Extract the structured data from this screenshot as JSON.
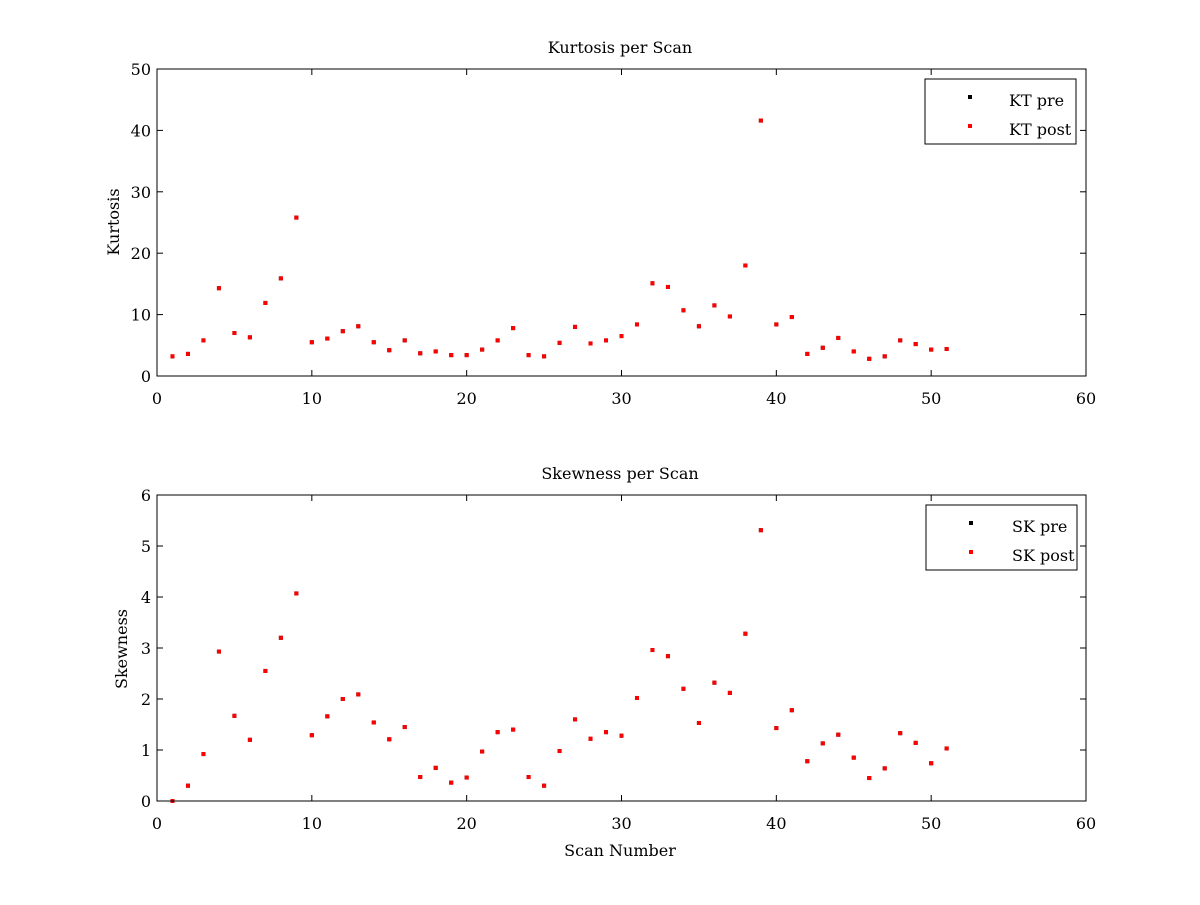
{
  "chart_data": [
    {
      "type": "scatter",
      "title": "Kurtosis per Scan",
      "xlabel": "",
      "ylabel": "Kurtosis",
      "xlim": [
        0,
        60
      ],
      "ylim": [
        0,
        50
      ],
      "xticks": [
        0,
        10,
        20,
        30,
        40,
        50,
        60
      ],
      "yticks": [
        0,
        10,
        20,
        30,
        40,
        50
      ],
      "legend_position": "top-right",
      "series": [
        {
          "name": "KT pre",
          "color": "#000000",
          "x": [
            1,
            2,
            3,
            4,
            5,
            6,
            7,
            8,
            9,
            10,
            11,
            12,
            13,
            14,
            15,
            16,
            17,
            18,
            19,
            20,
            21,
            22,
            23,
            24,
            25,
            26,
            27,
            28,
            29,
            30,
            31,
            32,
            33,
            34,
            35,
            36,
            37,
            38,
            39,
            40,
            41,
            42,
            43,
            44,
            45,
            46,
            47,
            48,
            49,
            50,
            51
          ],
          "y": [
            3.2,
            3.6,
            5.8,
            14.3,
            7.0,
            6.3,
            11.9,
            15.9,
            25.8,
            5.5,
            6.1,
            7.3,
            8.1,
            5.5,
            4.2,
            5.8,
            3.7,
            4.0,
            3.4,
            3.4,
            4.3,
            5.8,
            7.8,
            3.4,
            3.2,
            5.4,
            8.0,
            5.3,
            5.8,
            6.5,
            8.4,
            15.1,
            14.5,
            10.7,
            8.1,
            11.5,
            9.7,
            18.0,
            41.6,
            8.4,
            9.6,
            3.6,
            4.6,
            6.2,
            4.0,
            2.8,
            3.2,
            5.8,
            5.2,
            4.3,
            4.4
          ]
        },
        {
          "name": "KT post",
          "color": "#ff0000",
          "x": [
            1,
            2,
            3,
            4,
            5,
            6,
            7,
            8,
            9,
            10,
            11,
            12,
            13,
            14,
            15,
            16,
            17,
            18,
            19,
            20,
            21,
            22,
            23,
            24,
            25,
            26,
            27,
            28,
            29,
            30,
            31,
            32,
            33,
            34,
            35,
            36,
            37,
            38,
            39,
            40,
            41,
            42,
            43,
            44,
            45,
            46,
            47,
            48,
            49,
            50,
            51
          ],
          "y": [
            3.2,
            3.6,
            5.8,
            14.3,
            7.0,
            6.3,
            11.9,
            15.9,
            25.8,
            5.5,
            6.1,
            7.3,
            8.1,
            5.5,
            4.2,
            5.8,
            3.7,
            4.0,
            3.4,
            3.4,
            4.3,
            5.8,
            7.8,
            3.4,
            3.2,
            5.4,
            8.0,
            5.3,
            5.8,
            6.5,
            8.4,
            15.1,
            14.5,
            10.7,
            8.1,
            11.5,
            9.7,
            18.0,
            41.6,
            8.4,
            9.6,
            3.6,
            4.6,
            6.2,
            4.0,
            2.8,
            3.2,
            5.8,
            5.2,
            4.3,
            4.4
          ]
        }
      ]
    },
    {
      "type": "scatter",
      "title": "Skewness per Scan",
      "xlabel": "Scan Number",
      "ylabel": "Skewness",
      "xlim": [
        0,
        60
      ],
      "ylim": [
        0,
        6
      ],
      "xticks": [
        0,
        10,
        20,
        30,
        40,
        50,
        60
      ],
      "yticks": [
        0,
        1,
        2,
        3,
        4,
        5,
        6
      ],
      "legend_position": "top-right",
      "series": [
        {
          "name": "SK pre",
          "color": "#000000",
          "x": [
            1,
            2,
            3,
            4,
            5,
            6,
            7,
            8,
            9,
            10,
            11,
            12,
            13,
            14,
            15,
            16,
            17,
            18,
            19,
            20,
            21,
            22,
            23,
            24,
            25,
            26,
            27,
            28,
            29,
            30,
            31,
            32,
            33,
            34,
            35,
            36,
            37,
            38,
            39,
            40,
            41,
            42,
            43,
            44,
            45,
            46,
            47,
            48,
            49,
            50,
            51
          ],
          "y": [
            0.0,
            0.3,
            0.92,
            2.93,
            1.67,
            1.2,
            2.55,
            3.2,
            4.07,
            1.29,
            1.66,
            2.0,
            2.09,
            1.54,
            1.21,
            1.45,
            0.47,
            0.65,
            0.36,
            0.46,
            0.97,
            1.35,
            1.4,
            0.47,
            0.3,
            0.98,
            1.6,
            1.22,
            1.35,
            1.28,
            2.02,
            2.96,
            2.84,
            2.2,
            1.53,
            2.32,
            2.12,
            3.28,
            5.31,
            1.43,
            1.78,
            0.78,
            1.13,
            1.3,
            0.85,
            0.45,
            0.64,
            1.33,
            1.14,
            0.74,
            1.03
          ]
        },
        {
          "name": "SK post",
          "color": "#ff0000",
          "x": [
            1,
            2,
            3,
            4,
            5,
            6,
            7,
            8,
            9,
            10,
            11,
            12,
            13,
            14,
            15,
            16,
            17,
            18,
            19,
            20,
            21,
            22,
            23,
            24,
            25,
            26,
            27,
            28,
            29,
            30,
            31,
            32,
            33,
            34,
            35,
            36,
            37,
            38,
            39,
            40,
            41,
            42,
            43,
            44,
            45,
            46,
            47,
            48,
            49,
            50,
            51
          ],
          "y": [
            0.0,
            0.3,
            0.92,
            2.93,
            1.67,
            1.2,
            2.55,
            3.2,
            4.07,
            1.29,
            1.66,
            2.0,
            2.09,
            1.54,
            1.21,
            1.45,
            0.47,
            0.65,
            0.36,
            0.46,
            0.97,
            1.35,
            1.4,
            0.47,
            0.3,
            0.98,
            1.6,
            1.22,
            1.35,
            1.28,
            2.02,
            2.96,
            2.84,
            2.2,
            1.53,
            2.32,
            2.12,
            3.28,
            5.31,
            1.43,
            1.78,
            0.78,
            1.13,
            1.3,
            0.85,
            0.45,
            0.64,
            1.33,
            1.14,
            0.74,
            1.03
          ]
        }
      ]
    }
  ]
}
